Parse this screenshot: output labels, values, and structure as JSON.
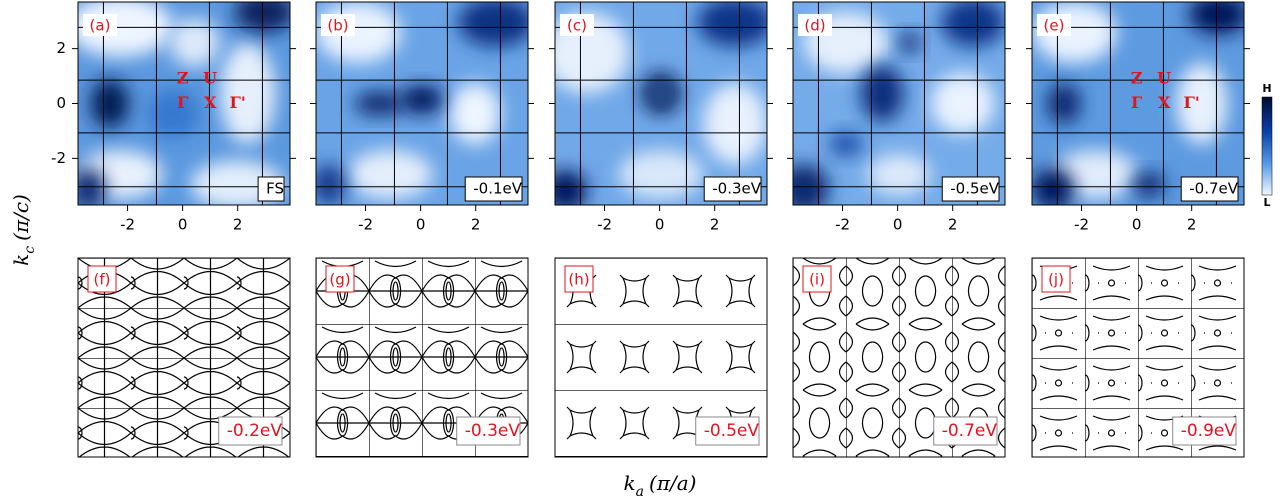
{
  "top_row": {
    "panels": [
      {
        "label": "(a)",
        "energy": "FS"
      },
      {
        "label": "(b)",
        "energy": "-0.1eV"
      },
      {
        "label": "(c)",
        "energy": "-0.3eV"
      },
      {
        "label": "(d)",
        "energy": "-0.5eV"
      },
      {
        "label": "(e)",
        "energy": "-0.7eV"
      }
    ],
    "xlim": [
      -3.8,
      3.9
    ],
    "ylim": [
      -3.7,
      3.7
    ],
    "xticks": [
      -2,
      0,
      2
    ],
    "yticks": [
      2,
      0,
      -2
    ]
  },
  "high_symmetry_points": [
    "Z",
    "U",
    "Γ",
    "X",
    "Γ'"
  ],
  "colorbar": {
    "high": "H",
    "low": "L"
  },
  "bottom_row": {
    "panels": [
      {
        "label": "(f)",
        "energy": "-0.2eV"
      },
      {
        "label": "(g)",
        "energy": "-0.3eV"
      },
      {
        "label": "(h)",
        "energy": "-0.5eV"
      },
      {
        "label": "(i)",
        "energy": "-0.7eV"
      },
      {
        "label": "(j)",
        "energy": "-0.9eV"
      }
    ]
  },
  "y_axis_label": {
    "symbol": "k",
    "subscript": "c",
    "unit": "(π/c)"
  },
  "x_axis_label": {
    "symbol": "k",
    "subscript": "a",
    "unit": "(π/a)"
  }
}
